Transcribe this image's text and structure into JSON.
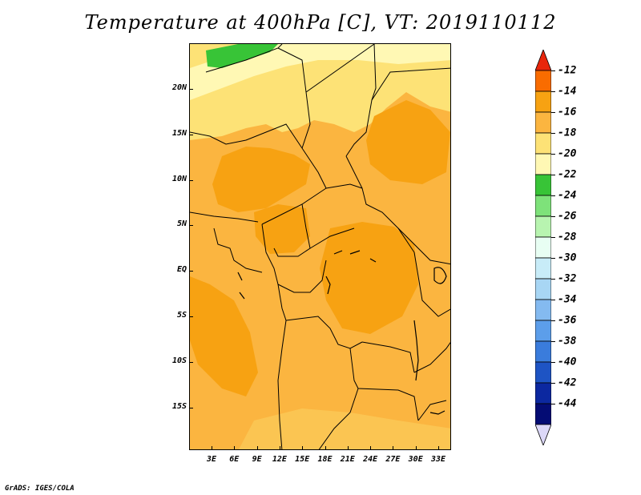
{
  "title": "Temperature at 400hPa [C], VT: 2019110112",
  "credit": "GrADS: IGES/COLA",
  "map": {
    "region": "Central Africa",
    "lat_labels": [
      "20N",
      "15N",
      "10N",
      "5N",
      "EQ",
      "5S",
      "10S",
      "15S"
    ],
    "lon_labels": [
      "3E",
      "6E",
      "9E",
      "12E",
      "15E",
      "18E",
      "21E",
      "24E",
      "27E",
      "30E",
      "33E"
    ],
    "dominant_fill": "#fbb540"
  },
  "colorbar": {
    "labels": [
      "-12",
      "-14",
      "-16",
      "-18",
      "-20",
      "-22",
      "-24",
      "-26",
      "-28",
      "-30",
      "-32",
      "-34",
      "-36",
      "-38",
      "-40",
      "-42",
      "-44"
    ],
    "colors": [
      "#e8260c",
      "#f96c00",
      "#f7a212",
      "#fbb540",
      "#fde276",
      "#fff8b4",
      "#38c437",
      "#7ee27a",
      "#b8f4b0",
      "#e8fef3",
      "#c8ecf8",
      "#a8d6f4",
      "#84baf0",
      "#5c9eea",
      "#3a7cdc",
      "#1e54c4",
      "#0c28a0",
      "#040c74",
      "#dcd8f8"
    ]
  }
}
